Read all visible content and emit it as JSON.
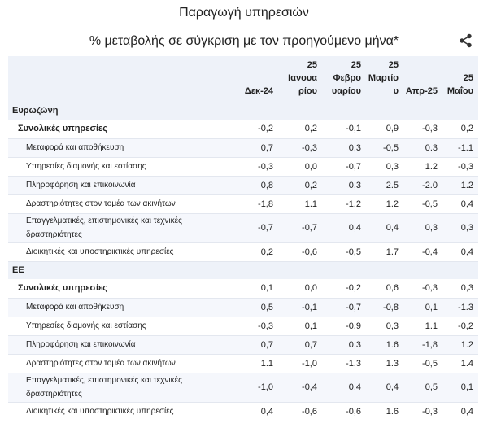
{
  "header": {
    "title": "Παραγωγή υπηρεσιών",
    "subtitle": "% μεταβολής σε σύγκριση με τον προηγούμενο μήνα*",
    "share_icon": "share-icon"
  },
  "table": {
    "columns": [
      [
        "",
        "Δεκ-24"
      ],
      [
        "25",
        "Ιανουα",
        "ρίου"
      ],
      [
        "25",
        "Φεβρο",
        "υαρίου"
      ],
      [
        "25",
        "Μαρτίο",
        "υ"
      ],
      [
        "",
        "Απρ-25"
      ],
      [
        "25",
        "Μαΐου"
      ]
    ],
    "groups": [
      {
        "name": "Ευρωζώνη",
        "rows": [
          {
            "label": "Συνολικές υπηρεσίες",
            "type": "agg",
            "values": [
              "-0,2",
              "0,2",
              "-0,1",
              "0,9",
              "-0,3",
              "0,2"
            ]
          },
          {
            "label": "Μεταφορά και αποθήκευση",
            "type": "sub",
            "values": [
              "0,7",
              "-0,3",
              "0,3",
              "-0,5",
              "0.3",
              "-1.1"
            ]
          },
          {
            "label": "Υπηρεσίες διαμονής και εστίασης",
            "type": "sub",
            "values": [
              "-0,3",
              "0,0",
              "-0,7",
              "0,3",
              "1.2",
              "-0,3"
            ]
          },
          {
            "label": "Πληροφόρηση και επικοινωνία",
            "type": "sub",
            "values": [
              "0,8",
              "0,2",
              "0,3",
              "2.5",
              "-2.0",
              "1.2"
            ]
          },
          {
            "label": "Δραστηριότητες στον τομέα των ακινήτων",
            "type": "sub",
            "values": [
              "-1,8",
              "1.1",
              "-1.2",
              "1.2",
              "-0,5",
              "0,4"
            ]
          },
          {
            "label": "Επαγγελματικές, επιστημονικές και τεχνικές",
            "label2": "δραστηριότητες",
            "type": "sub",
            "values": [
              "-0,7",
              "-0,7",
              "0,4",
              "0,4",
              "0,3",
              "0,3"
            ]
          },
          {
            "label": "Διοικητικές και υποστηρικτικές υπηρεσίες",
            "type": "sub",
            "values": [
              "0,2",
              "-0,6",
              "-0,5",
              "1.7",
              "-0,4",
              "0,4"
            ]
          }
        ]
      },
      {
        "name": "ΕΕ",
        "rows": [
          {
            "label": "Συνολικές υπηρεσίες",
            "type": "agg",
            "values": [
              "0,1",
              "0,0",
              "-0,2",
              "0,6",
              "-0,3",
              "0,3"
            ]
          },
          {
            "label": "Μεταφορά και αποθήκευση",
            "type": "sub",
            "values": [
              "0,5",
              "-0,1",
              "-0,7",
              "-0,8",
              "0,1",
              "-1.3"
            ]
          },
          {
            "label": "Υπηρεσίες διαμονής και εστίασης",
            "type": "sub",
            "values": [
              "-0,3",
              "0,1",
              "-0,9",
              "0,3",
              "1.1",
              "-0,2"
            ]
          },
          {
            "label": "Πληροφόρηση και επικοινωνία",
            "type": "sub",
            "values": [
              "0,7",
              "0,7",
              "0,3",
              "1.6",
              "-1,8",
              "1.2"
            ]
          },
          {
            "label": "Δραστηριότητες στον τομέα των ακινήτων",
            "type": "sub",
            "values": [
              "1.1",
              "-1,0",
              "-1.3",
              "1.3",
              "-0,5",
              "1.4"
            ]
          },
          {
            "label": "Επαγγελματικές, επιστημονικές και τεχνικές",
            "label2": "δραστηριότητες",
            "type": "sub",
            "values": [
              "-1,0",
              "-0,4",
              "0,4",
              "0,4",
              "0,5",
              "0,1"
            ]
          },
          {
            "label": "Διοικητικές και υποστηρικτικές υπηρεσίες",
            "type": "sub",
            "values": [
              "0,4",
              "-0,6",
              "-0,6",
              "1.6",
              "-0,3",
              "0,4"
            ]
          }
        ]
      }
    ]
  }
}
